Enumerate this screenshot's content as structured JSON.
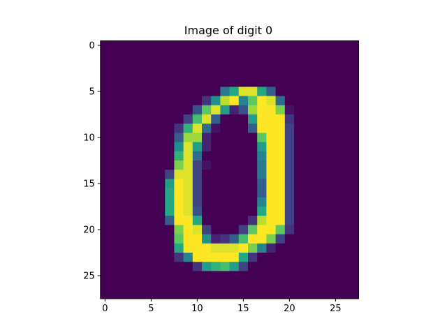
{
  "chart_data": {
    "type": "heatmap",
    "title": "Image of digit 0",
    "colormap": "viridis",
    "value_range": [
      0,
      1
    ],
    "rows": 28,
    "cols": 28,
    "xlim": [
      -0.5,
      27.5
    ],
    "ylim": [
      27.5,
      -0.5
    ],
    "x_ticks": [
      0,
      5,
      10,
      15,
      20,
      25
    ],
    "y_ticks": [
      0,
      5,
      10,
      15,
      20,
      25
    ],
    "x_tick_labels": [
      "0",
      "5",
      "10",
      "15",
      "20",
      "25"
    ],
    "y_tick_labels": [
      "0",
      "5",
      "10",
      "15",
      "20",
      "25"
    ],
    "grid": false,
    "pixels": [
      {
        "row": 5,
        "values": {
          "13": 0.4,
          "14": 0.6,
          "15": 0.95,
          "16": 0.95,
          "17": 0.6,
          "18": 0.3
        }
      },
      {
        "row": 6,
        "values": {
          "11": 0.15,
          "12": 0.5,
          "13": 0.9,
          "14": 1.0,
          "15": 0.45,
          "16": 0.75,
          "17": 1.0,
          "18": 0.95,
          "19": 0.35
        }
      },
      {
        "row": 7,
        "values": {
          "10": 0.25,
          "11": 0.75,
          "12": 0.95,
          "13": 0.55,
          "14": 0.1,
          "15": 0.25,
          "16": 0.85,
          "17": 1.0,
          "18": 1.0,
          "19": 0.8,
          "20": 0.05
        }
      },
      {
        "row": 8,
        "values": {
          "9": 0.2,
          "10": 0.7,
          "11": 0.95,
          "12": 0.3,
          "16": 0.55,
          "17": 1.0,
          "18": 1.0,
          "19": 1.0,
          "20": 0.15
        }
      },
      {
        "row": 9,
        "values": {
          "8": 0.15,
          "9": 0.65,
          "10": 0.95,
          "11": 0.35,
          "12": 0.05,
          "16": 0.3,
          "17": 1.0,
          "18": 1.0,
          "19": 1.0,
          "20": 0.2
        }
      },
      {
        "row": 10,
        "values": {
          "8": 0.3,
          "9": 0.85,
          "10": 0.85,
          "11": 0.1,
          "17": 0.75,
          "18": 1.0,
          "19": 1.0,
          "20": 0.2
        }
      },
      {
        "row": 11,
        "values": {
          "8": 0.5,
          "9": 0.95,
          "10": 0.55,
          "11": 0.1,
          "17": 0.55,
          "18": 1.0,
          "19": 1.0,
          "20": 0.2
        }
      },
      {
        "row": 12,
        "values": {
          "8": 0.65,
          "9": 0.95,
          "10": 0.35,
          "17": 0.45,
          "18": 1.0,
          "19": 1.0,
          "20": 0.2
        }
      },
      {
        "row": 13,
        "values": {
          "8": 0.8,
          "9": 0.95,
          "10": 0.2,
          "11": 0.05,
          "17": 0.4,
          "18": 1.0,
          "19": 1.0,
          "20": 0.2
        }
      },
      {
        "row": 14,
        "values": {
          "7": 0.2,
          "8": 0.95,
          "9": 0.95,
          "10": 0.2,
          "17": 0.4,
          "18": 1.0,
          "19": 1.0,
          "20": 0.2
        }
      },
      {
        "row": 15,
        "values": {
          "7": 0.55,
          "8": 1.0,
          "9": 0.95,
          "10": 0.2,
          "17": 0.3,
          "18": 1.0,
          "19": 1.0,
          "20": 0.2
        }
      },
      {
        "row": 16,
        "values": {
          "7": 0.6,
          "8": 1.0,
          "9": 0.95,
          "10": 0.2,
          "17": 0.3,
          "18": 1.0,
          "19": 1.0,
          "20": 0.2
        }
      },
      {
        "row": 17,
        "values": {
          "7": 0.6,
          "8": 1.0,
          "9": 0.95,
          "10": 0.2,
          "17": 0.45,
          "18": 1.0,
          "19": 1.0,
          "20": 0.2
        }
      },
      {
        "row": 18,
        "values": {
          "7": 0.6,
          "8": 1.0,
          "9": 0.95,
          "10": 0.25,
          "17": 0.6,
          "18": 1.0,
          "19": 1.0,
          "20": 0.2
        }
      },
      {
        "row": 19,
        "values": {
          "7": 0.3,
          "8": 1.0,
          "9": 1.0,
          "10": 0.6,
          "16": 0.15,
          "17": 0.9,
          "18": 1.0,
          "19": 1.0,
          "20": 0.2
        }
      },
      {
        "row": 20,
        "values": {
          "8": 0.8,
          "9": 1.0,
          "10": 0.95,
          "11": 0.2,
          "15": 0.2,
          "16": 0.75,
          "17": 1.0,
          "18": 1.0,
          "19": 0.75,
          "20": 0.15
        }
      },
      {
        "row": 21,
        "values": {
          "8": 0.75,
          "9": 1.0,
          "10": 1.0,
          "11": 0.5,
          "12": 0.1,
          "13": 0.15,
          "14": 0.3,
          "15": 0.7,
          "16": 1.0,
          "17": 1.0,
          "18": 0.8,
          "19": 0.2
        }
      },
      {
        "row": 22,
        "values": {
          "8": 0.6,
          "9": 1.0,
          "10": 1.0,
          "11": 1.0,
          "12": 0.95,
          "13": 0.95,
          "14": 0.95,
          "15": 1.0,
          "16": 0.8,
          "17": 0.45,
          "18": 0.1
        }
      },
      {
        "row": 23,
        "values": {
          "8": 0.15,
          "9": 0.45,
          "10": 1.0,
          "11": 1.0,
          "12": 1.0,
          "13": 1.0,
          "14": 1.0,
          "15": 0.6,
          "16": 0.15
        }
      },
      {
        "row": 24,
        "values": {
          "10": 0.15,
          "11": 0.55,
          "12": 0.65,
          "13": 0.7,
          "14": 0.55,
          "15": 0.2
        }
      }
    ]
  }
}
